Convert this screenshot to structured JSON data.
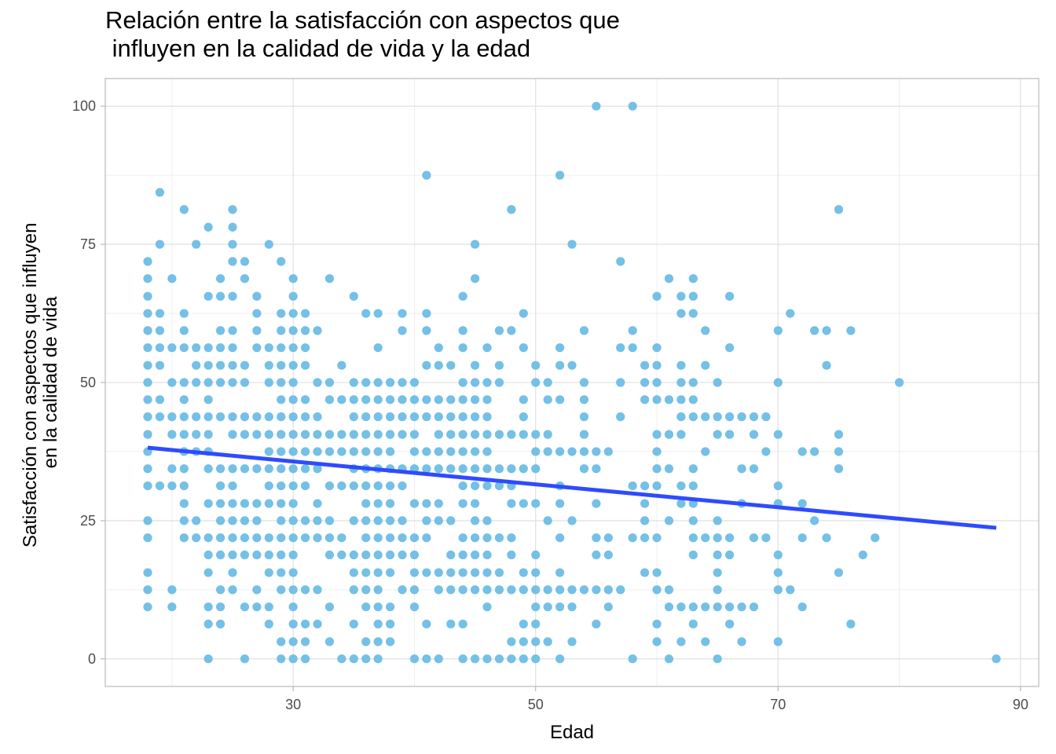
{
  "chart_data": {
    "type": "scatter",
    "title_lines": [
      "Relación entre la satisfacción con aspectos que",
      " influyen en la calidad de vida y la edad"
    ],
    "xlabel": "Edad",
    "ylabel_lines": [
      "Satisfacción con aspectos que influyen",
      "en la calidad de vida"
    ],
    "xlim": [
      14.5,
      91.5
    ],
    "ylim": [
      -5,
      105
    ],
    "x_ticks": [
      30,
      50,
      70,
      90
    ],
    "x_tick_labels": [
      "30",
      "50",
      "70",
      "90"
    ],
    "x_minor_ticks": [
      20,
      40,
      60,
      80
    ],
    "y_ticks": [
      0,
      25,
      50,
      75,
      100
    ],
    "y_tick_labels": [
      "0",
      "25",
      "50",
      "75",
      "100"
    ],
    "y_minor_ticks": [
      12.5,
      37.5,
      62.5,
      87.5
    ],
    "grid": true,
    "point_color": "#74C0E6",
    "line_color": "#2E4BFF",
    "trend_line": {
      "x": [
        18,
        88
      ],
      "y": [
        38.2,
        23.7
      ]
    },
    "columns": [
      {
        "x": 18,
        "y": [
          9.4,
          12.5,
          15.6,
          21.9,
          25,
          31.3,
          34.4,
          37.5,
          40.6,
          43.8,
          46.9,
          50,
          53.1,
          56.3,
          59.4,
          62.5,
          65.6,
          68.8,
          71.9
        ]
      },
      {
        "x": 19,
        "y": [
          31.3,
          43.8,
          46.9,
          53.1,
          56.3,
          59.4,
          62.5,
          75,
          84.4
        ]
      },
      {
        "x": 20,
        "y": [
          9.4,
          12.5,
          31.3,
          34.4,
          40.6,
          43.8,
          50,
          56.3,
          68.8
        ]
      },
      {
        "x": 21,
        "y": [
          21.9,
          25,
          28.1,
          31.3,
          34.4,
          37.5,
          40.6,
          43.8,
          46.9,
          50,
          56.3,
          59.4,
          62.5,
          81.3
        ]
      },
      {
        "x": 22,
        "y": [
          21.9,
          25,
          37.5,
          40.6,
          43.8,
          50,
          53.1,
          56.3,
          75
        ]
      },
      {
        "x": 23,
        "y": [
          0,
          6.3,
          9.4,
          15.6,
          18.8,
          21.9,
          28.1,
          34.4,
          37.5,
          40.6,
          43.8,
          46.9,
          50,
          53.1,
          56.3,
          65.6,
          78.1
        ]
      },
      {
        "x": 24,
        "y": [
          6.3,
          9.4,
          12.5,
          18.8,
          21.9,
          25,
          28.1,
          31.3,
          34.4,
          43.8,
          50,
          53.1,
          56.3,
          59.4,
          65.6,
          68.8
        ]
      },
      {
        "x": 25,
        "y": [
          12.5,
          15.6,
          18.8,
          21.9,
          25,
          28.1,
          31.3,
          34.4,
          40.6,
          43.8,
          50,
          53.1,
          56.3,
          59.4,
          65.6,
          71.9,
          75,
          78.1,
          81.3
        ]
      },
      {
        "x": 26,
        "y": [
          0,
          9.4,
          18.8,
          21.9,
          25,
          28.1,
          34.4,
          40.6,
          43.8,
          50,
          53.1,
          68.8,
          71.9
        ]
      },
      {
        "x": 27,
        "y": [
          9.4,
          12.5,
          18.8,
          21.9,
          25,
          28.1,
          34.4,
          40.6,
          43.8,
          56.3,
          59.4,
          62.5,
          65.6
        ]
      },
      {
        "x": 28,
        "y": [
          6.3,
          9.4,
          15.6,
          18.8,
          21.9,
          28.1,
          31.3,
          34.4,
          37.5,
          40.6,
          43.8,
          50,
          53.1,
          56.3,
          75
        ]
      },
      {
        "x": 29,
        "y": [
          0,
          3.1,
          12.5,
          15.6,
          18.8,
          21.9,
          25,
          28.1,
          31.3,
          34.4,
          37.5,
          40.6,
          43.8,
          46.9,
          50,
          53.1,
          56.3,
          59.4,
          62.5,
          71.9
        ]
      },
      {
        "x": 30,
        "y": [
          0,
          3.1,
          6.3,
          9.4,
          12.5,
          15.6,
          18.8,
          21.9,
          25,
          28.1,
          31.3,
          34.4,
          37.5,
          40.6,
          43.8,
          46.9,
          50,
          53.1,
          56.3,
          59.4,
          62.5,
          65.6,
          68.8
        ]
      },
      {
        "x": 31,
        "y": [
          0,
          3.1,
          6.3,
          12.5,
          21.9,
          25,
          31.3,
          34.4,
          37.5,
          40.6,
          43.8,
          46.9,
          53.1,
          56.3,
          59.4,
          62.5
        ]
      },
      {
        "x": 32,
        "y": [
          6.3,
          12.5,
          21.9,
          25,
          28.1,
          34.4,
          37.5,
          40.6,
          43.8,
          50,
          59.4
        ]
      },
      {
        "x": 33,
        "y": [
          3.1,
          9.4,
          18.8,
          21.9,
          25,
          31.3,
          37.5,
          40.6,
          46.9,
          50,
          68.8
        ]
      },
      {
        "x": 34,
        "y": [
          0,
          18.8,
          21.9,
          31.3,
          37.5,
          40.6,
          46.9,
          53.1
        ]
      },
      {
        "x": 35,
        "y": [
          0,
          6.3,
          12.5,
          15.6,
          18.8,
          25,
          31.3,
          34.4,
          37.5,
          40.6,
          43.8,
          46.9,
          50,
          65.6
        ]
      },
      {
        "x": 36,
        "y": [
          0,
          3.1,
          9.4,
          12.5,
          15.6,
          18.8,
          21.9,
          25,
          28.1,
          31.3,
          34.4,
          37.5,
          40.6,
          43.8,
          46.9,
          50,
          62.5
        ]
      },
      {
        "x": 37,
        "y": [
          0,
          3.1,
          6.3,
          9.4,
          12.5,
          15.6,
          18.8,
          21.9,
          25,
          28.1,
          31.3,
          34.4,
          37.5,
          40.6,
          43.8,
          46.9,
          50,
          56.3,
          62.5
        ]
      },
      {
        "x": 38,
        "y": [
          3.1,
          6.3,
          9.4,
          15.6,
          18.8,
          21.9,
          25,
          28.1,
          31.3,
          34.4,
          37.5,
          40.6,
          43.8,
          46.9,
          50
        ]
      },
      {
        "x": 39,
        "y": [
          12.5,
          18.8,
          21.9,
          25,
          31.3,
          34.4,
          40.6,
          43.8,
          46.9,
          50,
          59.4,
          62.5
        ]
      },
      {
        "x": 40,
        "y": [
          0,
          9.4,
          12.5,
          15.6,
          18.8,
          21.9,
          28.1,
          34.4,
          37.5,
          40.6,
          43.8,
          46.9,
          50
        ]
      },
      {
        "x": 41,
        "y": [
          0,
          6.3,
          15.6,
          21.9,
          25,
          28.1,
          34.4,
          37.5,
          43.8,
          46.9,
          53.1,
          59.4,
          62.5,
          87.5
        ]
      },
      {
        "x": 42,
        "y": [
          0,
          12.5,
          15.6,
          25,
          28.1,
          34.4,
          37.5,
          40.6,
          43.8,
          46.9,
          53.1,
          56.3
        ]
      },
      {
        "x": 43,
        "y": [
          6.3,
          12.5,
          15.6,
          18.8,
          25,
          34.4,
          37.5,
          40.6,
          43.8,
          46.9,
          53.1
        ]
      },
      {
        "x": 44,
        "y": [
          0,
          6.3,
          12.5,
          15.6,
          18.8,
          21.9,
          28.1,
          31.3,
          34.4,
          37.5,
          40.6,
          43.8,
          46.9,
          50,
          56.3,
          59.4,
          65.6
        ]
      },
      {
        "x": 45,
        "y": [
          0,
          12.5,
          15.6,
          18.8,
          21.9,
          25,
          28.1,
          31.3,
          34.4,
          37.5,
          40.6,
          43.8,
          46.9,
          50,
          53.1,
          68.8,
          75
        ]
      },
      {
        "x": 46,
        "y": [
          0,
          9.4,
          12.5,
          15.6,
          18.8,
          21.9,
          25,
          31.3,
          34.4,
          37.5,
          40.6,
          43.8,
          46.9,
          50,
          56.3
        ]
      },
      {
        "x": 47,
        "y": [
          0,
          12.5,
          15.6,
          21.9,
          31.3,
          34.4,
          40.6,
          50,
          53.1,
          59.4
        ]
      },
      {
        "x": 48,
        "y": [
          0,
          3.1,
          12.5,
          18.8,
          21.9,
          28.1,
          31.3,
          34.4,
          40.6,
          59.4,
          81.3
        ]
      },
      {
        "x": 49,
        "y": [
          0,
          3.1,
          6.3,
          12.5,
          15.6,
          28.1,
          34.4,
          40.6,
          43.8,
          46.9,
          56.3,
          62.5
        ]
      },
      {
        "x": 50,
        "y": [
          0,
          3.1,
          6.3,
          9.4,
          12.5,
          15.6,
          18.8,
          28.1,
          34.4,
          37.5,
          40.6,
          50,
          53.1
        ]
      },
      {
        "x": 51,
        "y": [
          3.1,
          9.4,
          12.5,
          25,
          37.5,
          40.6,
          46.9,
          50
        ]
      },
      {
        "x": 52,
        "y": [
          0,
          9.4,
          12.5,
          15.6,
          21.9,
          28.1,
          31.3,
          37.5,
          46.9,
          53.1,
          56.3,
          87.5
        ]
      },
      {
        "x": 53,
        "y": [
          3.1,
          9.4,
          12.5,
          25,
          37.5,
          53.1,
          75
        ]
      },
      {
        "x": 54,
        "y": [
          12.5,
          34.4,
          37.5,
          40.6,
          43.8,
          46.9,
          50,
          59.4
        ]
      },
      {
        "x": 55,
        "y": [
          6.3,
          12.5,
          18.8,
          21.9,
          28.1,
          34.4,
          37.5,
          100
        ]
      },
      {
        "x": 56,
        "y": [
          9.4,
          12.5,
          18.8,
          21.9,
          37.5
        ]
      },
      {
        "x": 57,
        "y": [
          12.5,
          43.8,
          50,
          56.3,
          71.9
        ]
      },
      {
        "x": 58,
        "y": [
          0,
          21.9,
          31.3,
          56.3,
          59.4,
          100
        ]
      },
      {
        "x": 59,
        "y": [
          15.6,
          21.9,
          25,
          28.1,
          31.3,
          46.9,
          50,
          53.1
        ]
      },
      {
        "x": 60,
        "y": [
          3.1,
          6.3,
          12.5,
          15.6,
          21.9,
          31.3,
          34.4,
          37.5,
          40.6,
          46.9,
          50,
          53.1,
          56.3,
          65.6
        ]
      },
      {
        "x": 61,
        "y": [
          0,
          9.4,
          12.5,
          25,
          34.4,
          40.6,
          46.9,
          68.8
        ]
      },
      {
        "x": 62,
        "y": [
          3.1,
          9.4,
          28.1,
          31.3,
          40.6,
          43.8,
          46.9,
          50,
          53.1,
          62.5,
          65.6
        ]
      },
      {
        "x": 63,
        "y": [
          6.3,
          9.4,
          18.8,
          21.9,
          25,
          28.1,
          31.3,
          34.4,
          43.8,
          46.9,
          50,
          62.5,
          65.6,
          68.8
        ]
      },
      {
        "x": 64,
        "y": [
          3.1,
          9.4,
          21.9,
          37.5,
          43.8,
          53.1,
          59.4
        ]
      },
      {
        "x": 65,
        "y": [
          0,
          9.4,
          12.5,
          15.6,
          18.8,
          21.9,
          25,
          40.6,
          43.8,
          50
        ]
      },
      {
        "x": 66,
        "y": [
          6.3,
          9.4,
          18.8,
          21.9,
          40.6,
          43.8,
          56.3,
          65.6
        ]
      },
      {
        "x": 67,
        "y": [
          3.1,
          9.4,
          28.1,
          34.4,
          43.8
        ]
      },
      {
        "x": 68,
        "y": [
          9.4,
          21.9,
          34.4,
          40.6,
          43.8
        ]
      },
      {
        "x": 69,
        "y": [
          21.9,
          37.5,
          43.8
        ]
      },
      {
        "x": 70,
        "y": [
          3.1,
          12.5,
          15.6,
          18.8,
          28.1,
          31.3,
          40.6,
          50,
          59.4
        ]
      },
      {
        "x": 71,
        "y": [
          12.5,
          62.5
        ]
      },
      {
        "x": 72,
        "y": [
          9.4,
          21.9,
          28.1,
          37.5
        ]
      },
      {
        "x": 73,
        "y": [
          25,
          37.5,
          59.4
        ]
      },
      {
        "x": 74,
        "y": [
          21.9,
          53.1,
          59.4
        ]
      },
      {
        "x": 75,
        "y": [
          15.6,
          34.4,
          37.5,
          40.6,
          81.3
        ]
      },
      {
        "x": 76,
        "y": [
          6.3,
          59.4
        ]
      },
      {
        "x": 77,
        "y": [
          18.8
        ]
      },
      {
        "x": 78,
        "y": [
          21.9
        ]
      },
      {
        "x": 80,
        "y": [
          50
        ]
      },
      {
        "x": 88,
        "y": [
          0
        ]
      }
    ]
  }
}
